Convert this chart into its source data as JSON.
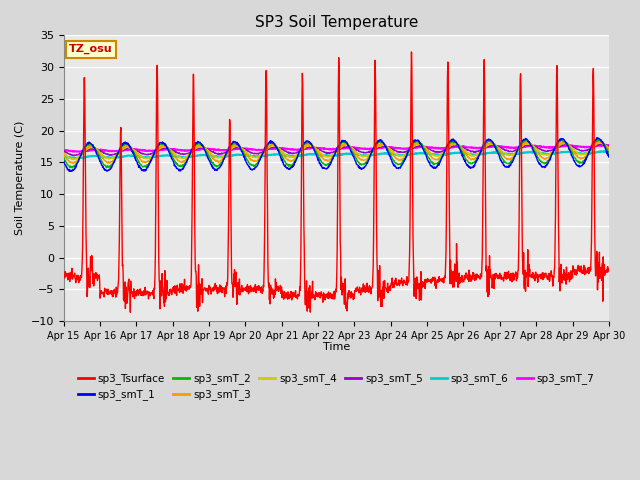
{
  "title": "SP3 Soil Temperature",
  "ylabel": "Soil Temperature (C)",
  "xlabel": "Time",
  "ylim": [
    -10,
    35
  ],
  "yticks": [
    -10,
    -5,
    0,
    5,
    10,
    15,
    20,
    25,
    30,
    35
  ],
  "xtick_labels": [
    "Apr 15",
    "Apr 16",
    "Apr 17",
    "Apr 18",
    "Apr 19",
    "Apr 20",
    "Apr 21",
    "Apr 22",
    "Apr 23",
    "Apr 24",
    "Apr 25",
    "Apr 26",
    "Apr 27",
    "Apr 28",
    "Apr 29",
    "Apr 30"
  ],
  "timezone_label": "TZ_osu",
  "series_colors": {
    "sp3_Tsurface": "#ff0000",
    "sp3_smT_1": "#0000ff",
    "sp3_smT_2": "#00bb00",
    "sp3_smT_3": "#ff9900",
    "sp3_smT_4": "#cccc00",
    "sp3_smT_5": "#9900cc",
    "sp3_smT_6": "#00cccc",
    "sp3_smT_7": "#ff00ff"
  },
  "background_color": "#e8e8e8",
  "plot_bg_color": "#e8e8e8",
  "grid_color": "#ffffff"
}
